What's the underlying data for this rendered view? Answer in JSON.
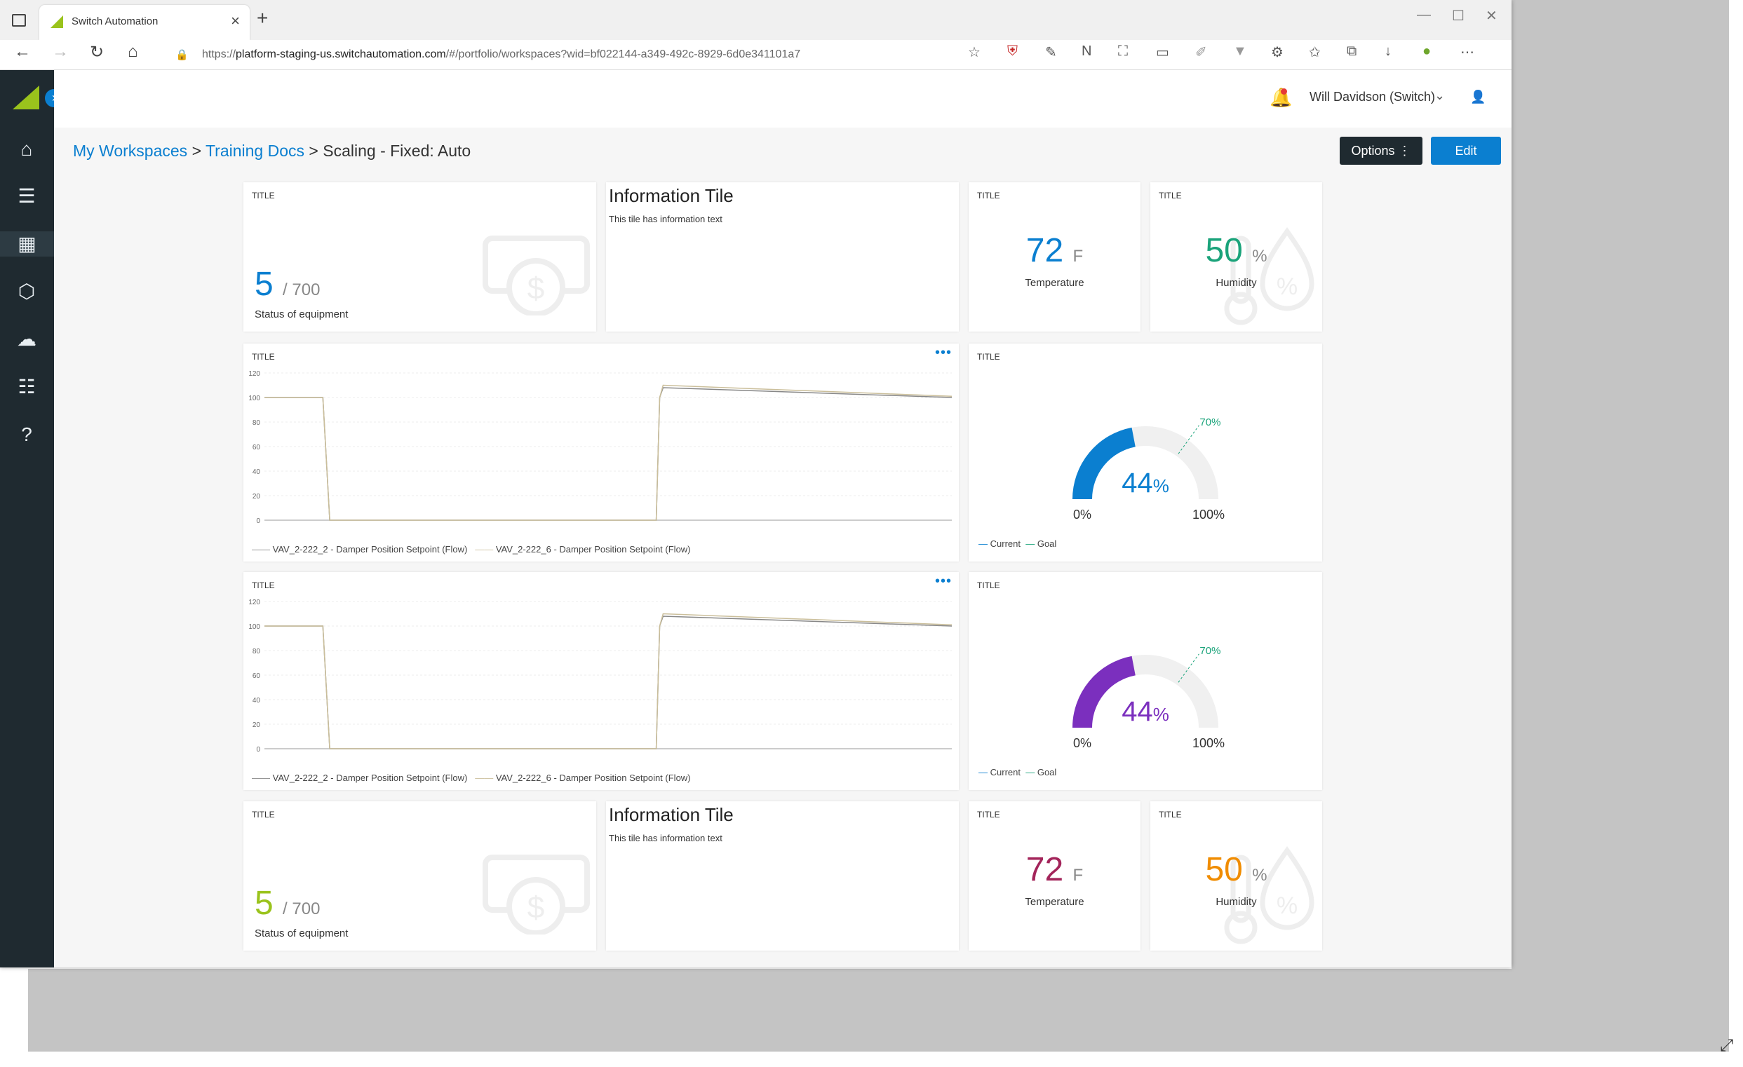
{
  "browser": {
    "tab_title": "Switch Automation",
    "url_prefix": "https://",
    "url_domain": "platform-staging-us.switchautomation.com",
    "url_path": "/#/portfolio/workspaces?wid=bf022144-a349-492c-8929-6d0e341101a7",
    "icons": [
      "back-icon",
      "forward-icon",
      "refresh-icon",
      "home-icon",
      "lock-icon",
      "favorite-add-icon",
      "shield-ext-icon",
      "pen-ext-icon",
      "notion-ext-icon",
      "capture-icon",
      "monitor-ext-icon",
      "pencil-icon",
      "filter-ext-icon",
      "puzzle-icon",
      "favorites-icon",
      "collections-icon",
      "download-icon",
      "profile-icon",
      "more-icon"
    ]
  },
  "header": {
    "user_name": "Will Davidson (Switch)"
  },
  "breadcrumb": {
    "item1": "My Workspaces",
    "item2": "Training Docs",
    "current": "Scaling - Fixed: Auto",
    "separator": ">"
  },
  "actions": {
    "options_label": "Options",
    "edit_label": "Edit"
  },
  "tiles": {
    "label": "TITLE",
    "status1": {
      "value": "5",
      "total": "/ 700",
      "caption": "Status of equipment",
      "color": "#0b7fd0"
    },
    "status2": {
      "value": "5",
      "total": "/ 700",
      "caption": "Status of equipment",
      "color": "#9ac31c"
    },
    "info": {
      "title": "Information Tile",
      "text": "This tile has information text"
    },
    "temp1": {
      "value": "72",
      "unit": "F",
      "caption": "Temperature",
      "color": "#0b7fd0"
    },
    "temp2": {
      "value": "72",
      "unit": "F",
      "caption": "Temperature",
      "color": "#a3245a"
    },
    "hum1": {
      "value": "50",
      "unit": "%",
      "caption": "Humidity",
      "color": "#1aa37a"
    },
    "hum2": {
      "value": "50",
      "unit": "%",
      "caption": "Humidity",
      "color": "#f08c00"
    },
    "legend_a": "VAV_2-222_2 - Damper Position Setpoint (Flow)",
    "legend_b": "VAV_2-222_6 - Damper Position Setpoint (Flow)",
    "gauge_legend_current": "Current",
    "gauge_legend_goal": "Goal"
  },
  "chart_data": [
    {
      "type": "line",
      "ylim": [
        0,
        120
      ],
      "yticks": [
        "120",
        "100",
        "80",
        "60",
        "40",
        "20",
        "0"
      ],
      "series": [
        {
          "name": "VAV_2-222_2 - Damper Position Setpoint (Flow)",
          "x": [
            0,
            0.085,
            0.095,
            0.57,
            0.575,
            0.58,
            1
          ],
          "values": [
            100,
            100,
            0,
            0,
            100,
            108,
            100
          ]
        },
        {
          "name": "VAV_2-222_6 - Damper Position Setpoint (Flow)",
          "x": [
            0,
            0.085,
            0.095,
            0.57,
            0.575,
            0.58,
            1
          ],
          "values": [
            100,
            100,
            0,
            0,
            100,
            110,
            101
          ]
        }
      ]
    },
    {
      "type": "gauge",
      "value": 44,
      "goal": 70,
      "min_label": "0%",
      "max_label": "100%",
      "goal_label": "70%",
      "value_label": "44",
      "value_unit": "%",
      "color": "#0b7fd0"
    },
    {
      "type": "line",
      "ylim": [
        0,
        120
      ],
      "yticks": [
        "120",
        "100",
        "80",
        "60",
        "40",
        "20",
        "0"
      ],
      "series": [
        {
          "name": "VAV_2-222_2 - Damper Position Setpoint (Flow)",
          "x": [
            0,
            0.085,
            0.095,
            0.57,
            0.575,
            0.58,
            1
          ],
          "values": [
            100,
            100,
            0,
            0,
            100,
            108,
            100
          ]
        },
        {
          "name": "VAV_2-222_6 - Damper Position Setpoint (Flow)",
          "x": [
            0,
            0.085,
            0.095,
            0.57,
            0.575,
            0.58,
            1
          ],
          "values": [
            100,
            100,
            0,
            0,
            100,
            110,
            101
          ]
        }
      ]
    },
    {
      "type": "gauge",
      "value": 44,
      "goal": 70,
      "min_label": "0%",
      "max_label": "100%",
      "goal_label": "70%",
      "value_label": "44",
      "value_unit": "%",
      "color": "#7b2fbe"
    }
  ]
}
